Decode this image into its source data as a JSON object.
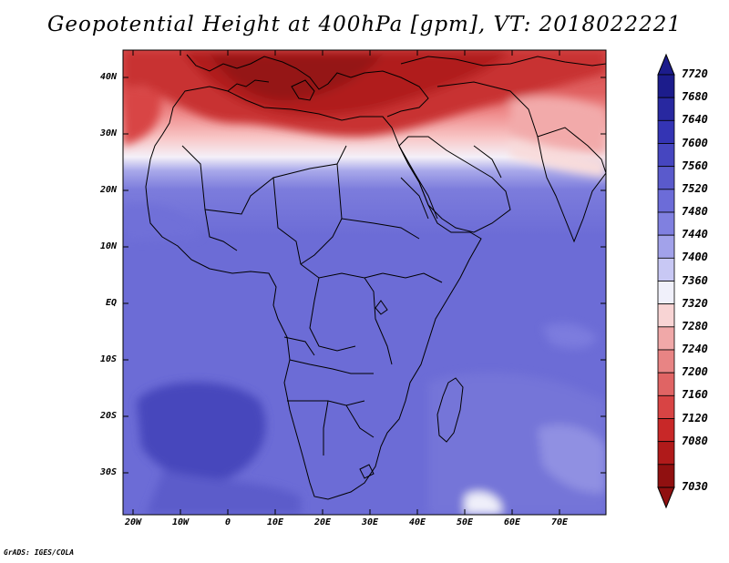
{
  "title": "Geopotential Height at 400hPa [gpm], VT: 2018022221",
  "credit": "GrADS: IGES/COLA",
  "lat_labels": [
    "40N",
    "30N",
    "20N",
    "10N",
    "EQ",
    "10S",
    "20S",
    "30S"
  ],
  "lon_labels": [
    "20W",
    "10W",
    "0",
    "10E",
    "20E",
    "30E",
    "40E",
    "50E",
    "60E",
    "70E"
  ],
  "colorbar": {
    "levels": [
      "7720",
      "7680",
      "7640",
      "7600",
      "7560",
      "7520",
      "7480",
      "7440",
      "7400",
      "7360",
      "7320",
      "7280",
      "7240",
      "7200",
      "7160",
      "7120",
      "7080",
      "7030"
    ],
    "colors_top_to_bottom": [
      "#1c1c8c",
      "#2828a0",
      "#3434b4",
      "#4646c0",
      "#5a5acc",
      "#6c6cd8",
      "#8080e0",
      "#a2a2ea",
      "#c8c8f4",
      "#f0f0fa",
      "#f8d4d4",
      "#f0a8a8",
      "#e88484",
      "#e06464",
      "#d84444",
      "#c82828",
      "#b01a1a",
      "#901010"
    ],
    "accent_low": "#901010",
    "accent_high": "#1c1c8c"
  }
}
